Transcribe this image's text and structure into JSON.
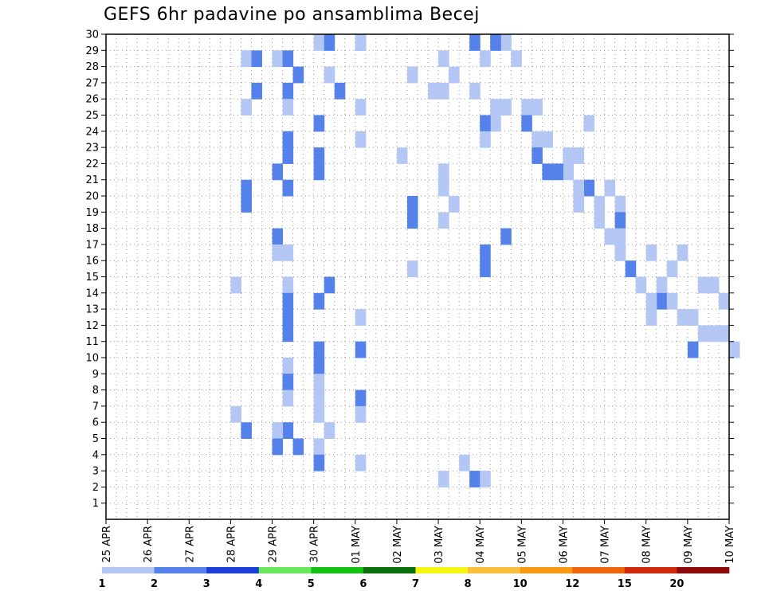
{
  "chart_data": {
    "type": "heatmap",
    "title": "GEFS 6hr padavine po ansamblima Becej",
    "x_labels": [
      "25 APR",
      "26 APR",
      "27 APR",
      "28 APR",
      "29 APR",
      "30 APR",
      "01 MAY",
      "02 MAY",
      "03 MAY",
      "04 MAY",
      "05 MAY",
      "06 MAY",
      "07 MAY",
      "08 MAY",
      "09 MAY",
      "10 MAY"
    ],
    "y_ticks": [
      1,
      2,
      3,
      4,
      5,
      6,
      7,
      8,
      9,
      10,
      11,
      12,
      13,
      14,
      15,
      16,
      17,
      18,
      19,
      20,
      21,
      22,
      23,
      24,
      25,
      26,
      27,
      28,
      29,
      30
    ],
    "steps_per_day": 4,
    "y_range": [
      0,
      30
    ],
    "grid": true,
    "colorbar": {
      "labels": [
        "1",
        "2",
        "3",
        "4",
        "5",
        "6",
        "7",
        "8",
        "10",
        "12",
        "15",
        "20"
      ],
      "colors": [
        "#b4c6f4",
        "#5582ea",
        "#1a3fd6",
        "#68e85a",
        "#14c214",
        "#0a6e0a",
        "#f5f514",
        "#fabf3c",
        "#fa9a14",
        "#f0640a",
        "#d2280a",
        "#8c0a0a"
      ]
    },
    "cells": [
      [
        0,
        5,
        0
      ],
      [
        1,
        5,
        1
      ],
      [
        1,
        6,
        0
      ],
      [
        0,
        6,
        0
      ],
      [
        0,
        4,
        0
      ],
      [
        0,
        3,
        1
      ],
      [
        1,
        3,
        2
      ],
      [
        1,
        4,
        1
      ],
      [
        0,
        5,
        1
      ],
      [
        0,
        4,
        2
      ],
      [
        1,
        4,
        2
      ],
      [
        1,
        3,
        2
      ],
      [
        1,
        4,
        1
      ],
      [
        1,
        5,
        2
      ],
      [
        0,
        3,
        1
      ],
      [
        0,
        4,
        1
      ],
      [
        0,
        6,
        0
      ],
      [
        0,
        5,
        0
      ],
      [
        1,
        5,
        0
      ],
      [
        0,
        4,
        1
      ],
      [
        1,
        4,
        1
      ],
      [
        0,
        6,
        0
      ],
      [
        1,
        4,
        1
      ],
      [
        1,
        5,
        0
      ],
      [
        0,
        7,
        0
      ],
      [
        1,
        4,
        0
      ],
      [
        1,
        5,
        0
      ],
      [
        0,
        8,
        0
      ],
      [
        1,
        4,
        1
      ],
      [
        0,
        8,
        0
      ],
      [
        1,
        3,
        1
      ],
      [
        0,
        8,
        1
      ],
      [
        1,
        7,
        1
      ],
      [
        1,
        3,
        1
      ],
      [
        0,
        8,
        0
      ],
      [
        1,
        7,
        1
      ],
      [
        1,
        4,
        0
      ],
      [
        1,
        8,
        6
      ],
      [
        0,
        4,
        1
      ],
      [
        1,
        8,
        4
      ],
      [
        0,
        4,
        0
      ],
      [
        1,
        8,
        4
      ],
      [
        0,
        7,
        1
      ],
      [
        0,
        4,
        1
      ],
      [
        1,
        5,
        1
      ],
      [
        0,
        3,
        0
      ],
      [
        1,
        4,
        1
      ],
      [
        1,
        5,
        0
      ],
      [
        1,
        4,
        1
      ],
      [
        0,
        6,
        0
      ],
      [
        1,
        4,
        1
      ],
      [
        1,
        6,
        0
      ],
      [
        1,
        5,
        0
      ],
      [
        0,
        4,
        1
      ],
      [
        1,
        5,
        0
      ],
      [
        0,
        4,
        1
      ],
      [
        1,
        4,
        1
      ],
      [
        0,
        5,
        0
      ],
      [
        1,
        4,
        1
      ],
      [
        0,
        5,
        0
      ],
      [
        1,
        6,
        0
      ],
      [
        0,
        4,
        1
      ],
      [
        0,
        5,
        0
      ],
      [
        0,
        6,
        0
      ],
      [
        0,
        3,
        0
      ],
      [
        1,
        3,
        1
      ],
      [
        1,
        4,
        1
      ],
      [
        0,
        4,
        0
      ],
      [
        0,
        5,
        1
      ],
      [
        1,
        4,
        2
      ],
      [
        0,
        5,
        0
      ],
      [
        1,
        4,
        0
      ],
      [
        1,
        5,
        0
      ],
      [
        0,
        6,
        0
      ],
      [
        0,
        8,
        2
      ],
      [
        1,
        8,
        3
      ],
      [
        0,
        9,
        0
      ],
      [
        0,
        8,
        0
      ],
      [
        0,
        9,
        1
      ],
      [
        0,
        9,
        2
      ],
      [
        1,
        9,
        1
      ],
      [
        1,
        8,
        3
      ],
      [
        0,
        9,
        3
      ],
      [
        0,
        9,
        0
      ],
      [
        0,
        8,
        0
      ],
      [
        0,
        8,
        1
      ],
      [
        0,
        7,
        1
      ],
      [
        0,
        7,
        3
      ],
      [
        0,
        8,
        3
      ],
      [
        0,
        8,
        0
      ],
      [
        0,
        9,
        1
      ],
      [
        0,
        10,
        0
      ],
      [
        0,
        10,
        1
      ],
      [
        0,
        9,
        2
      ],
      [
        0,
        9,
        1
      ],
      [
        1,
        10,
        0
      ],
      [
        0,
        11,
        2
      ],
      [
        1,
        9,
        0
      ],
      [
        0,
        10,
        1
      ],
      [
        0,
        9,
        0
      ],
      [
        0,
        10,
        2
      ],
      [
        0,
        11,
        0
      ],
      [
        0,
        11,
        1
      ],
      [
        1,
        10,
        1
      ],
      [
        1,
        10,
        2
      ],
      [
        0,
        11,
        0
      ],
      [
        1,
        10,
        3
      ],
      [
        1,
        11,
        2
      ],
      [
        0,
        12,
        0
      ],
      [
        0,
        11,
        1
      ],
      [
        0,
        11,
        3
      ],
      [
        0,
        12,
        1
      ],
      [
        0,
        11,
        1
      ],
      [
        1,
        12,
        1
      ],
      [
        0,
        11,
        3
      ],
      [
        0,
        12,
        1
      ],
      [
        0,
        12,
        0
      ],
      [
        0,
        12,
        1
      ],
      [
        0,
        13,
        0
      ],
      [
        0,
        13,
        3
      ],
      [
        0,
        12,
        1
      ],
      [
        0,
        12,
        2
      ],
      [
        0,
        13,
        2
      ],
      [
        1,
        12,
        2
      ],
      [
        0,
        13,
        1
      ],
      [
        0,
        14,
        1
      ],
      [
        0,
        14,
        2
      ],
      [
        0,
        12,
        3
      ],
      [
        1,
        13,
        1
      ],
      [
        0,
        14,
        3
      ],
      [
        0,
        13,
        0
      ],
      [
        0,
        13,
        2
      ],
      [
        0,
        13,
        3
      ],
      [
        0,
        14,
        0
      ],
      [
        0,
        13,
        0
      ],
      [
        0,
        14,
        0
      ],
      [
        0,
        14,
        3
      ],
      [
        0,
        14,
        2
      ],
      [
        0,
        14,
        3
      ],
      [
        0,
        14,
        1
      ],
      [
        1,
        14,
        0
      ],
      [
        0,
        15,
        0
      ]
    ]
  }
}
